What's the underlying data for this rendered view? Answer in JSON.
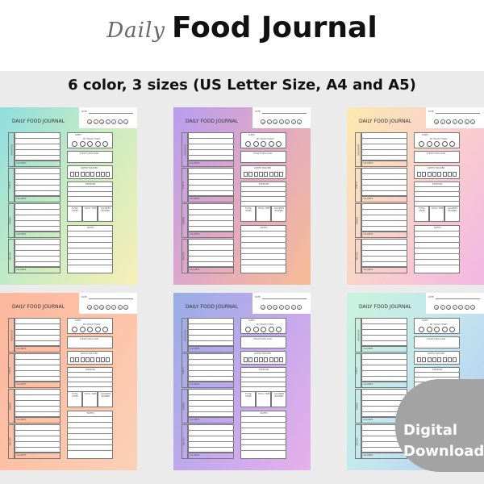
{
  "header": {
    "script_word": "Daily",
    "title": "Food Journal",
    "subtitle": "6 color, 3 sizes (US Letter Size, A4 and A5)"
  },
  "journal": {
    "title": "DAILY FOOD JOURNAL",
    "date_label": "DATE:",
    "days": [
      "M",
      "T",
      "W",
      "T",
      "F",
      "S",
      "S"
    ],
    "sleep": "SLEEP",
    "mood": "MY MOOD TODAY",
    "goal": "TODAY'S BIG GOAL",
    "water": "WATER TRACKER",
    "exercise": "EXERCISE",
    "totals": [
      "TOTAL STEPS",
      "TOTAL TIME",
      "CALORIES BURNED"
    ],
    "notes": "NOTES",
    "meals": [
      "BREAKFAST",
      "LUNCH",
      "DINNER",
      "SNACKS"
    ],
    "calories": "CALORIES"
  },
  "variants": [
    {
      "colors": [
        "#8fdde0",
        "#c9ecc0",
        "#f8efb6"
      ]
    },
    {
      "colors": [
        "#b79df0",
        "#e1a9c4",
        "#f8bc93"
      ]
    },
    {
      "colors": [
        "#fbe9b0",
        "#f9d0cc",
        "#f3b6e4"
      ]
    },
    {
      "colors": [
        "#fcb79d",
        "#fdc2a6",
        "#fcd1b8"
      ]
    },
    {
      "colors": [
        "#98aee6",
        "#c2a8ec",
        "#e7b0ea"
      ]
    },
    {
      "colors": [
        "#c9f3dc",
        "#c3e6ee",
        "#b3c9f3"
      ]
    }
  ],
  "badge": {
    "line1": "Digital",
    "line2": "Download"
  }
}
